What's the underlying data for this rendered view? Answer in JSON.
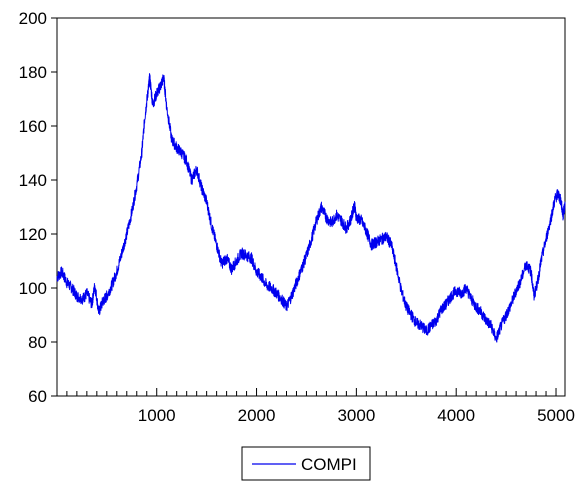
{
  "chart_data": {
    "type": "line",
    "title": "",
    "xlabel": "",
    "ylabel": "",
    "xlim": [
      1,
      5090
    ],
    "ylim": [
      60,
      200
    ],
    "x_ticks": [
      1000,
      2000,
      3000,
      4000,
      5000
    ],
    "y_ticks": [
      60,
      80,
      100,
      120,
      140,
      160,
      180,
      200
    ],
    "grid": false,
    "legend": {
      "position": "bottom-center"
    },
    "series": [
      {
        "name": "COMPI",
        "color": "#0000ee",
        "points": [
          [
            1,
            104
          ],
          [
            50,
            106
          ],
          [
            100,
            102
          ],
          [
            150,
            100
          ],
          [
            200,
            97
          ],
          [
            260,
            96
          ],
          [
            300,
            98
          ],
          [
            350,
            94
          ],
          [
            380,
            101
          ],
          [
            420,
            91
          ],
          [
            460,
            95
          ],
          [
            500,
            97
          ],
          [
            550,
            101
          ],
          [
            600,
            106
          ],
          [
            650,
            113
          ],
          [
            700,
            120
          ],
          [
            750,
            128
          ],
          [
            800,
            138
          ],
          [
            850,
            150
          ],
          [
            880,
            163
          ],
          [
            910,
            172
          ],
          [
            930,
            178
          ],
          [
            960,
            168
          ],
          [
            1000,
            172
          ],
          [
            1040,
            175
          ],
          [
            1070,
            178
          ],
          [
            1100,
            167
          ],
          [
            1150,
            155
          ],
          [
            1200,
            152
          ],
          [
            1250,
            150
          ],
          [
            1300,
            147
          ],
          [
            1350,
            140
          ],
          [
            1400,
            144
          ],
          [
            1450,
            137
          ],
          [
            1500,
            132
          ],
          [
            1550,
            123
          ],
          [
            1600,
            116
          ],
          [
            1650,
            109
          ],
          [
            1700,
            111
          ],
          [
            1750,
            107
          ],
          [
            1800,
            110
          ],
          [
            1850,
            113
          ],
          [
            1900,
            112
          ],
          [
            1950,
            111
          ],
          [
            2000,
            106
          ],
          [
            2050,
            104
          ],
          [
            2100,
            101
          ],
          [
            2150,
            100
          ],
          [
            2200,
            98
          ],
          [
            2250,
            96
          ],
          [
            2300,
            93
          ],
          [
            2350,
            97
          ],
          [
            2400,
            102
          ],
          [
            2450,
            107
          ],
          [
            2500,
            112
          ],
          [
            2550,
            118
          ],
          [
            2600,
            125
          ],
          [
            2650,
            130
          ],
          [
            2700,
            126
          ],
          [
            2750,
            124
          ],
          [
            2800,
            127
          ],
          [
            2850,
            125
          ],
          [
            2900,
            122
          ],
          [
            2950,
            126
          ],
          [
            2980,
            131
          ],
          [
            3000,
            126
          ],
          [
            3050,
            125
          ],
          [
            3100,
            121
          ],
          [
            3150,
            116
          ],
          [
            3200,
            117
          ],
          [
            3250,
            118
          ],
          [
            3300,
            119
          ],
          [
            3350,
            116
          ],
          [
            3400,
            108
          ],
          [
            3450,
            99
          ],
          [
            3500,
            93
          ],
          [
            3550,
            90
          ],
          [
            3600,
            87
          ],
          [
            3650,
            86
          ],
          [
            3700,
            84
          ],
          [
            3750,
            86
          ],
          [
            3800,
            88
          ],
          [
            3850,
            92
          ],
          [
            3900,
            94
          ],
          [
            3950,
            97
          ],
          [
            4000,
            99
          ],
          [
            4050,
            98
          ],
          [
            4100,
            100
          ],
          [
            4150,
            96
          ],
          [
            4200,
            93
          ],
          [
            4250,
            91
          ],
          [
            4300,
            88
          ],
          [
            4350,
            86
          ],
          [
            4400,
            81
          ],
          [
            4450,
            86
          ],
          [
            4500,
            90
          ],
          [
            4550,
            94
          ],
          [
            4600,
            99
          ],
          [
            4650,
            103
          ],
          [
            4700,
            109
          ],
          [
            4750,
            106
          ],
          [
            4780,
            97
          ],
          [
            4820,
            103
          ],
          [
            4850,
            110
          ],
          [
            4900,
            118
          ],
          [
            4950,
            126
          ],
          [
            4990,
            133
          ],
          [
            5020,
            135
          ],
          [
            5050,
            132
          ],
          [
            5070,
            127
          ],
          [
            5090,
            131
          ]
        ]
      }
    ]
  }
}
